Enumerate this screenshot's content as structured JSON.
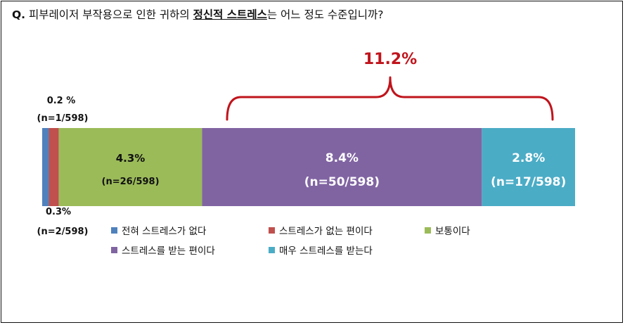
{
  "question": {
    "prefix": "Q.",
    "before": " 피부레이저 부작용으로 인한 귀하의 ",
    "emphasis": "정신적 스트레스",
    "after": "는 어느 정도 수준입니까?"
  },
  "chart_data": {
    "type": "bar",
    "orientation": "horizontal-stacked",
    "categories": [
      "전혀 스트레스가 없다",
      "스트레스가 없는 편이다",
      "보통이다",
      "스트레스를 받는 편이다",
      "매우 스트레스를 받는다"
    ],
    "values": [
      0.2,
      0.3,
      4.3,
      8.4,
      2.8
    ],
    "value_labels": [
      "0.2 %",
      "0.3%",
      "4.3%",
      "8.4%",
      "2.8%"
    ],
    "count_labels": [
      "(n=1/598)",
      "(n=2/598)",
      "(n=26/598)",
      "(n=50/598)",
      "(n=17/598)"
    ],
    "colors": [
      "#4f81bd",
      "#c0504d",
      "#9bbb59",
      "#8064a2",
      "#4bacc6"
    ],
    "label_colors": [
      "#111111",
      "#111111",
      "#111111",
      "#ffffff",
      "#ffffff"
    ],
    "bracket_label": "11.2%",
    "bracket_color": "#c0141c",
    "legend_placement": "bottom-left",
    "grid": false
  }
}
